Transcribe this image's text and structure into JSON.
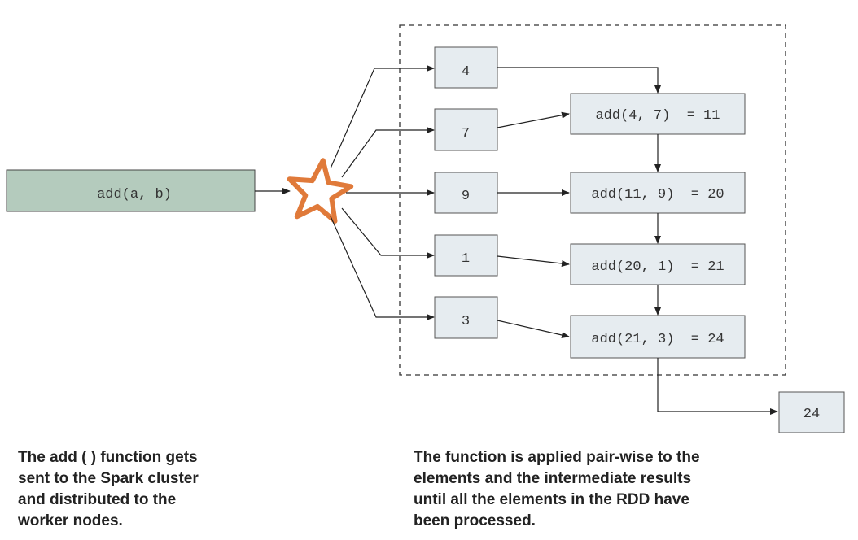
{
  "source_box": {
    "label": "add(a, b)",
    "color": "#b4cbbd"
  },
  "element_boxes": [
    "4",
    "7",
    "9",
    "1",
    "3"
  ],
  "result_boxes": [
    "add(4, 7)  = 11",
    "add(11, 9)  = 20",
    "add(20, 1)  = 21",
    "add(21, 3)  = 24"
  ],
  "final_box": "24",
  "box_fill": "#e6ecf0",
  "star_color": "#e07a3a",
  "captions": {
    "left": [
      "The add ( ) function gets",
      "sent to the Spark cluster",
      "and distributed to the",
      "worker nodes."
    ],
    "right": [
      "The function is applied pair-wise to the",
      "elements and the intermediate results",
      "until all the elements in the RDD have",
      "been processed."
    ]
  }
}
